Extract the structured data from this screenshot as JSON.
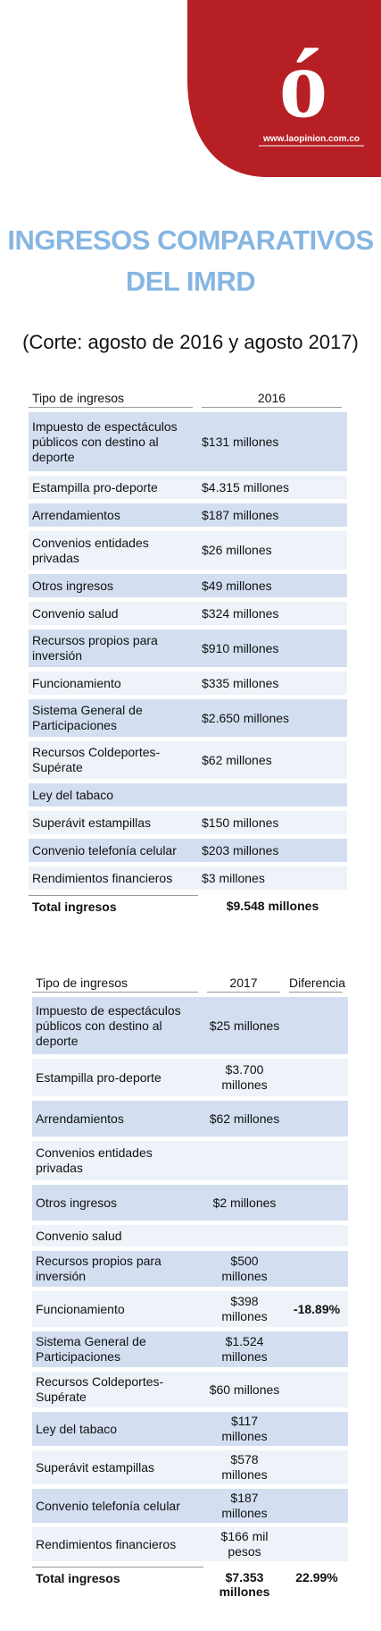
{
  "header": {
    "logo": "ó",
    "url": "www.laopinion.com.co"
  },
  "title": "INGRESOS COMPARATIVOS DEL IMRD",
  "subtitle": "(Corte: agosto de 2016 y agosto 2017)",
  "table1": {
    "columns": [
      "Tipo de ingresos",
      "2016"
    ],
    "rows": [
      [
        "Impuesto de espectáculos públicos con destino al deporte",
        "$131 millones"
      ],
      [
        "Estampilla pro-deporte",
        "$4.315 millones"
      ],
      [
        "Arrendamientos",
        "$187 millones"
      ],
      [
        "Convenios entidades privadas",
        "$26 millones"
      ],
      [
        "Otros ingresos",
        "$49 millones"
      ],
      [
        "Convenio salud",
        "$324 millones"
      ],
      [
        "Recursos propios para inversión",
        "$910 millones"
      ],
      [
        "Funcionamiento",
        "$335 millones"
      ],
      [
        "Sistema General de Participaciones",
        "$2.650 millones"
      ],
      [
        "Recursos Coldeportes-Supérate",
        "$62 millones"
      ],
      [
        "Ley del tabaco",
        null
      ],
      [
        "Superávit estampillas",
        "$150 millones"
      ],
      [
        "Convenio telefonía celular",
        "$203 millones"
      ],
      [
        "Rendimientos financieros",
        "$3 millones"
      ]
    ],
    "total": [
      "Total ingresos",
      "$9.548 millones"
    ]
  },
  "table2": {
    "columns": [
      "Tipo de ingresos",
      "2017",
      "Diferencia"
    ],
    "rows": [
      [
        "Impuesto de espectáculos públicos con destino al deporte",
        "$25 millones",
        null
      ],
      [
        "Estampilla pro-deporte",
        "$3.700 millones",
        null
      ],
      [
        "Arrendamientos",
        "$62 millones",
        null
      ],
      [
        "Convenios entidades privadas",
        null,
        null
      ],
      [
        "Otros ingresos",
        "$2 millones",
        null
      ],
      [
        "Convenio salud",
        null,
        null
      ],
      [
        "Recursos propios para inversión",
        "$500 millones",
        null
      ],
      [
        "Funcionamiento",
        "$398 millones",
        "-18.89%"
      ],
      [
        "Sistema General de Participaciones",
        "$1.524 millones",
        null
      ],
      [
        "Recursos Coldeportes-Supérate",
        "$60 millones",
        null
      ],
      [
        "Ley del tabaco",
        "$117 millones",
        null
      ],
      [
        "Superávit estampillas",
        "$578 millones",
        null
      ],
      [
        "Convenio telefonía celular",
        "$187 millones",
        null
      ],
      [
        "Rendimientos financieros",
        "$166 mil pesos",
        null
      ]
    ],
    "total": [
      "Total ingresos",
      "$7.353 millones",
      "22.99%"
    ]
  }
}
